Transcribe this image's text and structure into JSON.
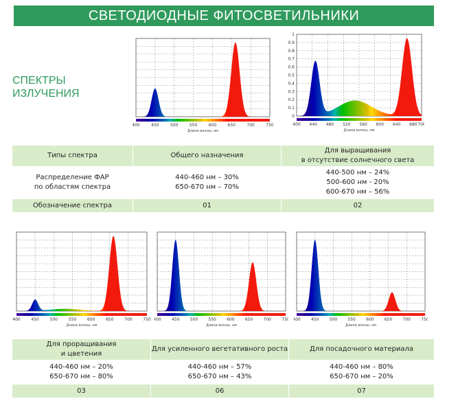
{
  "banner_title": "СВЕТОДИОДНЫЕ ФИТОСВЕТИЛЬНИКИ",
  "section_title_line1": "СПЕКТРЫ",
  "section_title_line2": "ИЗЛУЧЕНИЯ",
  "x_axis_label": "Длина волны, нм",
  "table_top": {
    "types_label": "Типы спектра",
    "col1_type": "Общего назначения",
    "col2_type_line1": "Для выращивания",
    "col2_type_line2": "в отсутствие солнечного света",
    "distribution_label_line1": "Распределение ФАР",
    "distribution_label_line2": "по областям спектра",
    "col1_dist": [
      "440-460 нм – 30%",
      "650-670 нм – 70%"
    ],
    "col2_dist": [
      "440-500 нм – 24%",
      "500-600 нм - 20%",
      "600-670 нм – 56%"
    ],
    "designation_label": "Обозначение спектра",
    "col1_code": "01",
    "col2_code": "02"
  },
  "table_bottom": {
    "col1_type_line1": "Для проращивания",
    "col1_type_line2": "и цветения",
    "col2_type": "Для усиленного вегетативного роста",
    "col3_type": "Для посадочного материала",
    "col1_dist": [
      "440-460 нм – 20%",
      "650-670 нм – 80%"
    ],
    "col2_dist": [
      "440-460 нм – 57%",
      "650-670 нм – 43%"
    ],
    "col3_dist": [
      "440-460 нм – 80%",
      "650-670 нм – 20%"
    ],
    "col1_code": "03",
    "col2_code": "06",
    "col3_code": "07"
  },
  "chart_data": [
    {
      "type": "area",
      "spectrum_code": "01",
      "x_ticks": [
        400,
        450,
        500,
        550,
        600,
        650,
        700,
        750
      ],
      "xlim": [
        400,
        750
      ],
      "peaks": [
        {
          "center": 450,
          "height": 0.38,
          "width": 9
        },
        {
          "center": 660,
          "height": 1.0,
          "width": 11
        }
      ]
    },
    {
      "type": "area",
      "spectrum_code": "02",
      "x_ticks": [
        400,
        440,
        480,
        520,
        560,
        600,
        640,
        680,
        700
      ],
      "y_ticks": [
        "1",
        "0.9",
        "0.8",
        "0.7",
        "0.6",
        "0.5",
        "0.4",
        "0.3",
        "0.2",
        "0.1",
        "0"
      ],
      "xlim": [
        400,
        700
      ],
      "ylim": [
        0,
        1
      ],
      "peaks": [
        {
          "center": 445,
          "height": 0.7,
          "width": 10
        },
        {
          "center": 540,
          "height": 0.2,
          "width": 40
        },
        {
          "center": 665,
          "height": 1.0,
          "width": 12
        }
      ]
    },
    {
      "type": "area",
      "spectrum_code": "03",
      "x_ticks": [
        400,
        450,
        500,
        550,
        600,
        650,
        700,
        750
      ],
      "xlim": [
        400,
        750
      ],
      "peaks": [
        {
          "center": 450,
          "height": 0.15,
          "width": 8
        },
        {
          "center": 530,
          "height": 0.03,
          "width": 40
        },
        {
          "center": 660,
          "height": 1.0,
          "width": 11
        }
      ]
    },
    {
      "type": "area",
      "spectrum_code": "06",
      "x_ticks": [
        400,
        450,
        500,
        550,
        600,
        650,
        700,
        750
      ],
      "xlim": [
        400,
        750
      ],
      "peaks": [
        {
          "center": 450,
          "height": 0.95,
          "width": 9
        },
        {
          "center": 660,
          "height": 0.65,
          "width": 10
        }
      ]
    },
    {
      "type": "area",
      "spectrum_code": "07",
      "x_ticks": [
        400,
        450,
        500,
        550,
        600,
        650,
        700,
        750
      ],
      "xlim": [
        400,
        750
      ],
      "peaks": [
        {
          "center": 450,
          "height": 0.95,
          "width": 9
        },
        {
          "center": 660,
          "height": 0.25,
          "width": 9
        }
      ]
    }
  ]
}
